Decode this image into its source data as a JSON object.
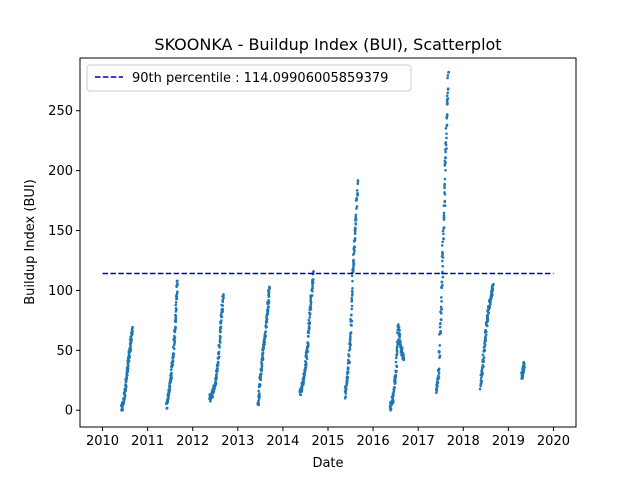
{
  "chart_data": {
    "type": "scatter",
    "title": "SKOONKA - Buildup Index (BUI), Scatterplot",
    "xlabel": "Date",
    "ylabel": "Buildup Index (BUI)",
    "x_ticks": [
      "2010",
      "2011",
      "2012",
      "2013",
      "2014",
      "2015",
      "2016",
      "2017",
      "2018",
      "2019",
      "2020"
    ],
    "y_ticks": [
      0,
      50,
      100,
      150,
      200,
      250
    ],
    "xlim": [
      2009.5,
      2020.5
    ],
    "ylim": [
      -14,
      294
    ],
    "grid": false,
    "legend_position": "top-left",
    "point_color": "#1f77b4",
    "series": [
      {
        "kind": "scatter",
        "clusters": [
          {
            "season": 2010,
            "x": [
              2010.42,
              2010.47,
              2010.52,
              2010.57,
              2010.62,
              2010.66
            ],
            "y": [
              0,
              8,
              22,
              40,
              55,
              68
            ]
          },
          {
            "season": 2011,
            "x": [
              2011.42,
              2011.47,
              2011.52,
              2011.57,
              2011.62,
              2011.66
            ],
            "y": [
              4,
              15,
              28,
              48,
              75,
              108
            ]
          },
          {
            "season": 2012,
            "x": [
              2012.38,
              2012.44,
              2012.5,
              2012.56,
              2012.62,
              2012.68
            ],
            "y": [
              10,
              14,
              22,
              40,
              70,
              96
            ]
          },
          {
            "season": 2013,
            "x": [
              2013.45,
              2013.5,
              2013.55,
              2013.6,
              2013.66,
              2013.7
            ],
            "y": [
              3,
              25,
              45,
              62,
              82,
              103
            ]
          },
          {
            "season": 2014,
            "x": [
              2014.38,
              2014.44,
              2014.5,
              2014.56,
              2014.62,
              2014.68
            ],
            "y": [
              14,
              22,
              35,
              60,
              90,
              116
            ]
          },
          {
            "season": 2015,
            "x": [
              2015.38,
              2015.44,
              2015.5,
              2015.55,
              2015.6,
              2015.66
            ],
            "y": [
              13,
              30,
              60,
              110,
              150,
              189
            ]
          },
          {
            "season": 2016,
            "x": [
              2016.38,
              2016.44,
              2016.5,
              2016.56,
              2016.62,
              2016.68
            ],
            "y": [
              2,
              10,
              30,
              70,
              52,
              42
            ]
          },
          {
            "season": 2017,
            "x": [
              2017.4,
              2017.46,
              2017.52,
              2017.57,
              2017.62,
              2017.67
            ],
            "y": [
              15,
              35,
              100,
              160,
              230,
              282
            ]
          },
          {
            "season": 2018,
            "x": [
              2018.38,
              2018.44,
              2018.5,
              2018.56,
              2018.62,
              2018.66
            ],
            "y": [
              20,
              40,
              65,
              84,
              95,
              104
            ]
          },
          {
            "season": 2019,
            "x": [
              2019.3,
              2019.33,
              2019.35
            ],
            "y": [
              28,
              33,
              38
            ]
          }
        ]
      },
      {
        "kind": "hline",
        "name": "90th percentile : 114.09906005859379",
        "y": 114.09906005859379,
        "x_range": [
          2010,
          2020
        ],
        "color": "#0000b3",
        "style": "dashed"
      }
    ]
  }
}
